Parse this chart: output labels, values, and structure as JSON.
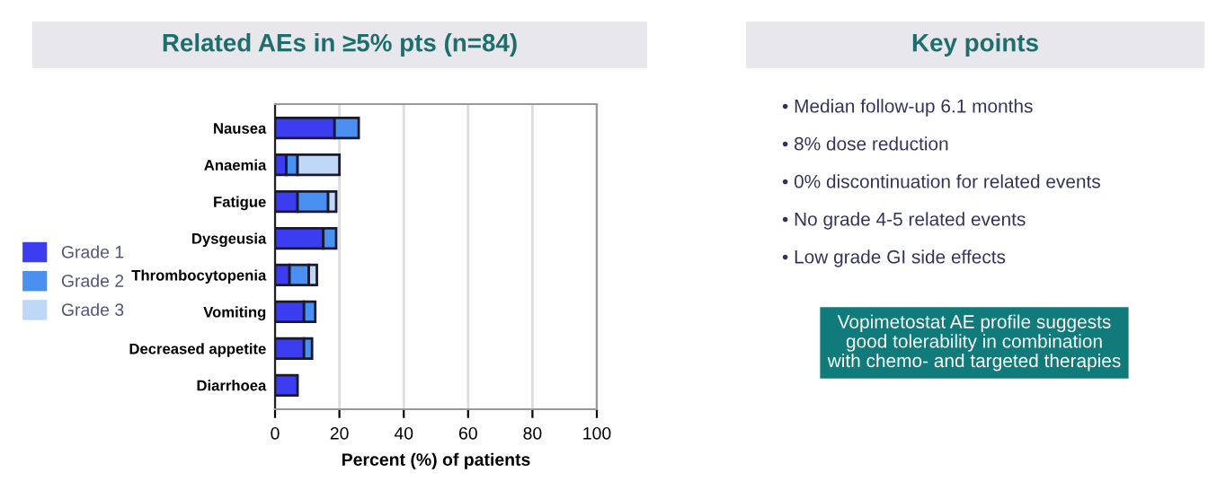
{
  "chart_data": [
    {
      "type": "bar",
      "orientation": "horizontal",
      "stacked": true,
      "title": "Related AEs in ≥5% pts (n=84)",
      "xlabel": "Percent (%) of patients",
      "categories": [
        "Nausea",
        "Anaemia",
        "Fatigue",
        "Dysgeusia",
        "Thrombocytopenia",
        "Vomiting",
        "Decreased appetite",
        "Diarrhoea"
      ],
      "series": [
        {
          "name": "Grade 1",
          "color": "#3c3cf0",
          "values": [
            18.5,
            3.5,
            7,
            15,
            4.5,
            9,
            9,
            7
          ]
        },
        {
          "name": "Grade 2",
          "color": "#4a90f0",
          "values": [
            7.5,
            3.5,
            9.5,
            4,
            6,
            3.5,
            2.5,
            null
          ]
        },
        {
          "name": "Grade 3",
          "color": "#c0d8f8",
          "values": [
            null,
            13,
            2.5,
            null,
            2.5,
            null,
            null,
            null
          ]
        }
      ],
      "xlim": [
        0,
        100
      ],
      "xticks": [
        0,
        20,
        40,
        60,
        80,
        100
      ],
      "grid": "x",
      "legend": "left"
    },
    {
      "type": "other",
      "title": "Key points",
      "annotations": [
        "• Median follow-up 6.1 months",
        "• 8% dose reduction",
        "• 0% discontinuation for related events",
        "• No grade 4-5 related events",
        "• Low grade GI side effects",
        "Vopimetostat AE profile suggests\ngood tolerability in combination\nwith chemo- and targeted therapies"
      ]
    }
  ]
}
